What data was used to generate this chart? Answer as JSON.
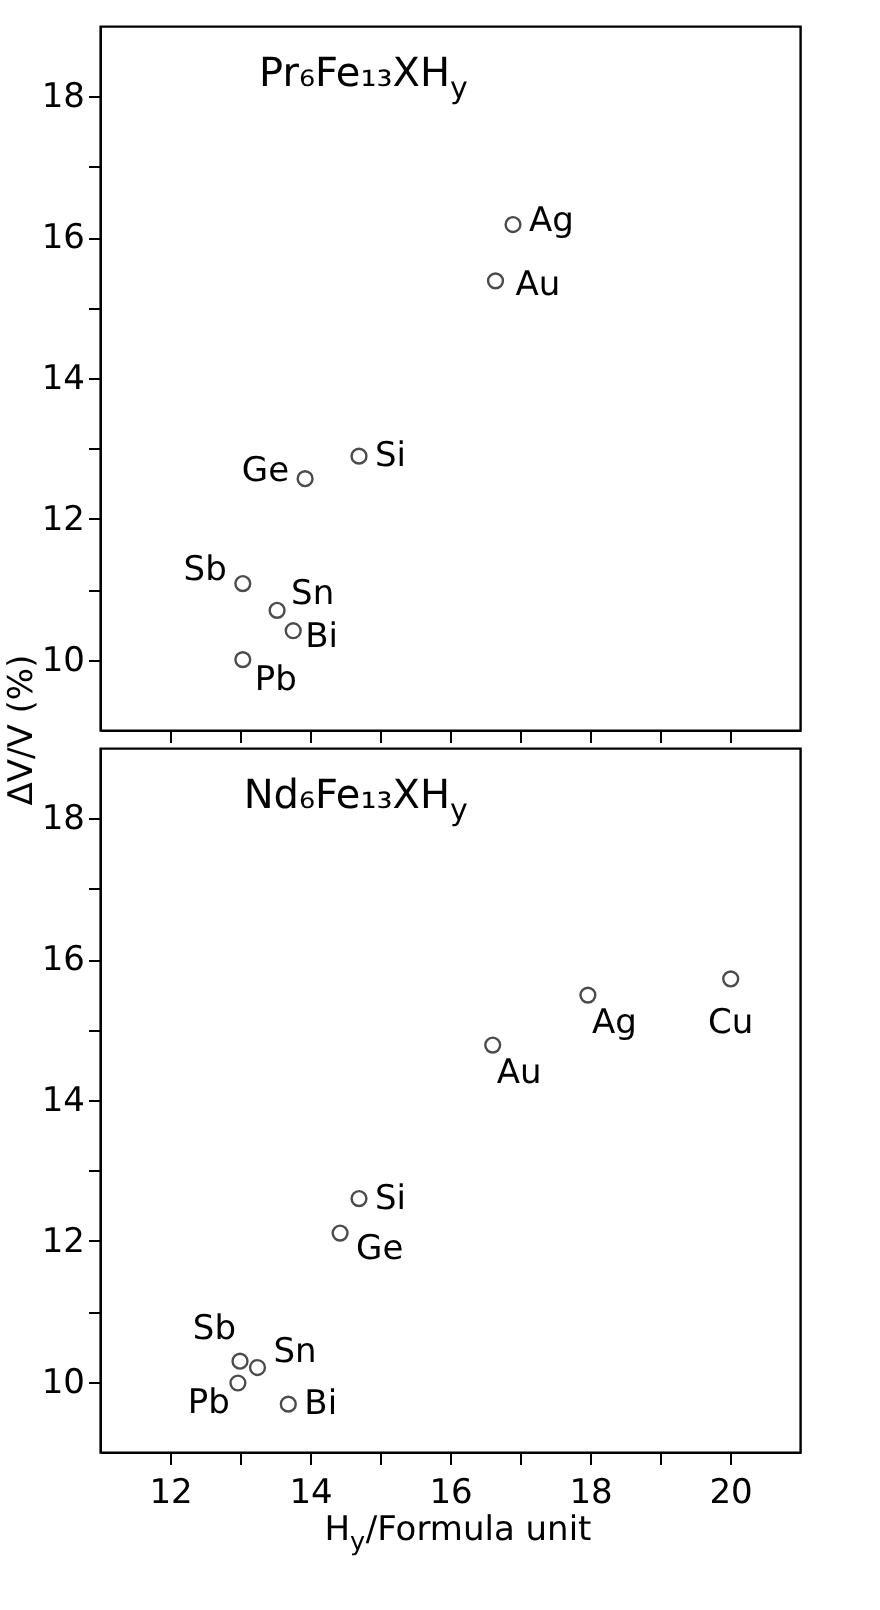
{
  "chart_data": [
    {
      "type": "scatter",
      "title": "Pr₆Fe₁₃XH$_{y}$",
      "ylabel": "ΔV/V  (%)",
      "x": [
        16.9,
        16.65,
        14.7,
        13.93,
        13.04,
        13.53,
        13.76,
        13.04
      ],
      "series": [
        {
          "color": "#000000",
          "values": [
            16.18,
            15.38,
            12.89,
            12.57,
            11.08,
            10.7,
            10.41,
            10.0
          ]
        }
      ],
      "marker": "circle",
      "annotations": [
        {
          "text": "Ag",
          "x": 16.9,
          "y": 16.18
        },
        {
          "text": "Au",
          "x": 16.65,
          "y": 15.38
        },
        {
          "text": "Si",
          "x": 14.7,
          "y": 12.89
        },
        {
          "text": "Ge",
          "x": 13.93,
          "y": 12.57
        },
        {
          "text": "Sb",
          "x": 13.04,
          "y": 11.08
        },
        {
          "text": "Sn",
          "x": 13.53,
          "y": 10.7
        },
        {
          "text": "Bi",
          "x": 13.76,
          "y": 10.41
        },
        {
          "text": "Pb",
          "x": 13.04,
          "y": 10.0
        }
      ],
      "xlim": [
        11,
        21
      ],
      "ylim": [
        9,
        19
      ],
      "xticks": [
        {
          "value": 12,
          "label": null
        },
        {
          "value": 13,
          "label": null
        },
        {
          "value": 14,
          "label": null
        },
        {
          "value": 15,
          "label": null
        },
        {
          "value": 16,
          "label": null
        },
        {
          "value": 17,
          "label": null
        },
        {
          "value": 18,
          "label": null
        },
        {
          "value": 19,
          "label": null
        },
        {
          "value": 20,
          "label": null
        }
      ],
      "yticks": [
        10,
        {
          "value": 11,
          "label": null
        },
        12,
        {
          "value": 13,
          "label": null
        },
        14,
        {
          "value": 15,
          "label": null
        },
        16,
        {
          "value": 17,
          "label": null
        },
        18
      ],
      "tick_labels": "y",
      "grid": false
    },
    {
      "type": "scatter",
      "title": "Nd₆Fe₁₃XH$_{y}$",
      "xlabel": "H$_{y}$/Formula unit",
      "x": [
        20.01,
        17.97,
        16.61,
        14.7,
        14.43,
        13.0,
        13.25,
        12.97,
        13.69
      ],
      "series": [
        {
          "color": "#000000",
          "values": [
            15.72,
            15.49,
            14.78,
            12.6,
            12.11,
            10.29,
            10.2,
            9.98,
            9.68
          ]
        }
      ],
      "marker": "circle",
      "annotations": [
        {
          "text": "Cu",
          "x": 20.01,
          "y": 15.72
        },
        {
          "text": "Ag",
          "x": 17.97,
          "y": 15.49
        },
        {
          "text": "Au",
          "x": 16.61,
          "y": 14.78
        },
        {
          "text": "Si",
          "x": 14.7,
          "y": 12.6
        },
        {
          "text": "Ge",
          "x": 14.43,
          "y": 12.11
        },
        {
          "text": "Sb",
          "x": 13.0,
          "y": 10.29
        },
        {
          "text": "Sn",
          "x": 13.25,
          "y": 10.2
        },
        {
          "text": "Pb",
          "x": 12.97,
          "y": 9.98
        },
        {
          "text": "Bi",
          "x": 13.69,
          "y": 9.68
        }
      ],
      "xlim": [
        11,
        21
      ],
      "ylim": [
        9,
        19
      ],
      "xticks": [
        12,
        {
          "value": 13,
          "label": null
        },
        14,
        {
          "value": 15,
          "label": null
        },
        16,
        {
          "value": 17,
          "label": null
        },
        18,
        {
          "value": 19,
          "label": null
        },
        20
      ],
      "yticks": [
        10,
        {
          "value": 11,
          "label": null
        },
        12,
        {
          "value": 13,
          "label": null
        },
        14,
        {
          "value": 15,
          "label": null
        },
        16,
        {
          "value": 17,
          "label": null
        },
        18
      ],
      "grid": false
    }
  ]
}
